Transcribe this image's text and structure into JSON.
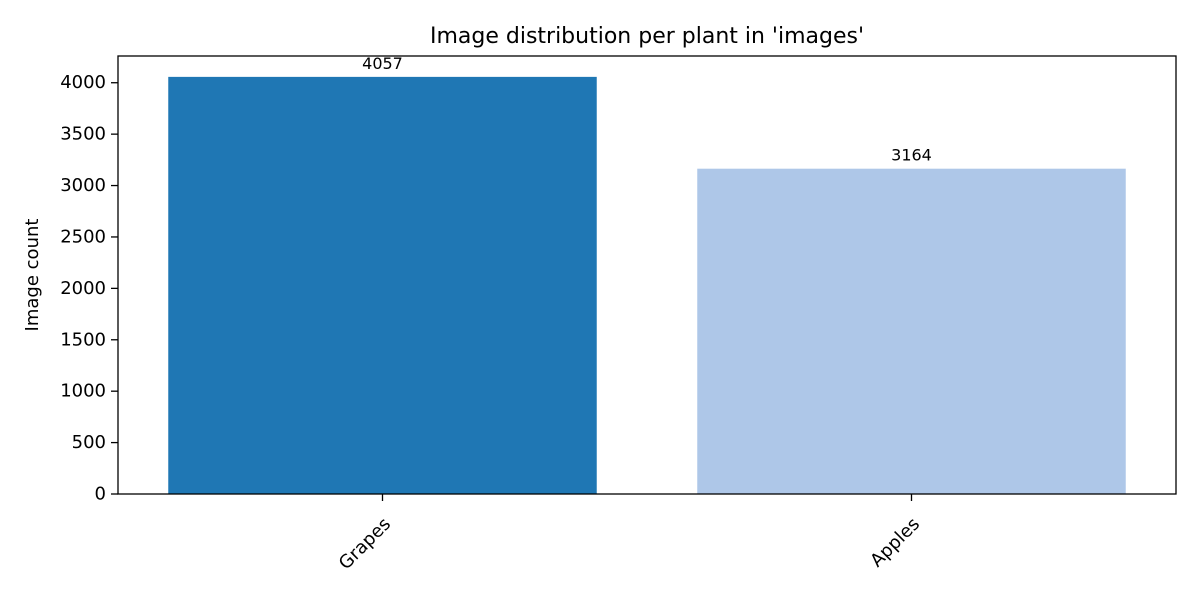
{
  "chart_data": {
    "type": "bar",
    "title": "Image distribution per plant in 'images'",
    "xlabel": "",
    "ylabel": "Image count",
    "categories": [
      "Grapes",
      "Apples"
    ],
    "values": [
      4057,
      3164
    ],
    "value_labels": [
      "4057",
      "3164"
    ],
    "bar_colors": [
      "#1f77b4",
      "#aec7e8"
    ],
    "ylim": [
      0,
      4260
    ],
    "yticks": [
      0,
      500,
      1000,
      1500,
      2000,
      2500,
      3000,
      3500,
      4000
    ],
    "ytick_labels": [
      "0",
      "500",
      "1000",
      "1500",
      "2000",
      "2500",
      "3000",
      "3500",
      "4000"
    ],
    "grid": false,
    "legend": "none"
  }
}
